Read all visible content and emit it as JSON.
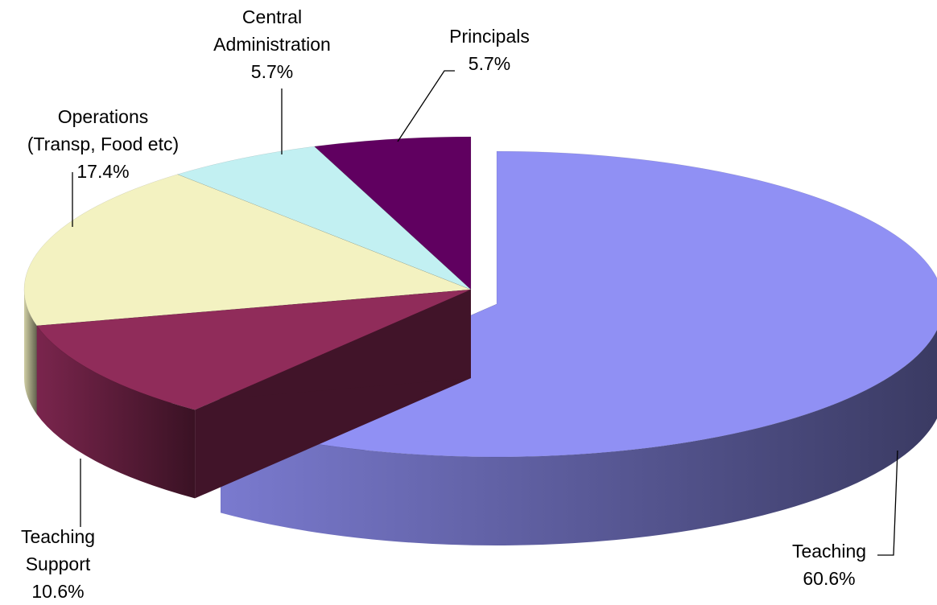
{
  "chart_data": {
    "type": "pie3d",
    "categories": [
      "Teaching",
      "Teaching Support",
      "Operations (Transp, Food etc)",
      "Central Administration",
      "Principals"
    ],
    "values": [
      60.6,
      10.6,
      17.4,
      5.7,
      5.7
    ],
    "value_labels": [
      "60.6%",
      "10.6%",
      "17.4%",
      "5.7%",
      "5.7%"
    ],
    "colors": [
      "#9090f4",
      "#902c5a",
      "#f3f2c1",
      "#c2f0f2",
      "#600060"
    ],
    "exploded": [
      "Teaching"
    ]
  }
}
